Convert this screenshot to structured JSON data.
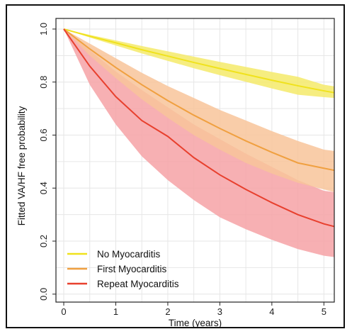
{
  "chart_data": {
    "type": "line",
    "xlabel": "Time (years)",
    "ylabel": "Fitted VA/HF free probability",
    "xlim": [
      -0.15,
      5.2
    ],
    "ylim": [
      -0.03,
      1.04
    ],
    "xticks": [
      "0",
      "1",
      "2",
      "3",
      "4",
      "5"
    ],
    "yticks": [
      "0.0",
      "0.2",
      "0.4",
      "0.6",
      "0.8",
      "1.0"
    ],
    "grid": true,
    "legend_position": "bottom-left",
    "series": [
      {
        "name": "No Myocarditis",
        "color": "#f0e21c",
        "band_color": "#f4ea6a",
        "x": [
          0,
          0.5,
          1,
          1.5,
          2,
          2.5,
          3,
          3.5,
          4,
          4.5,
          5,
          5.2
        ],
        "y": [
          1.0,
          0.973,
          0.948,
          0.922,
          0.898,
          0.874,
          0.851,
          0.829,
          0.807,
          0.786,
          0.767,
          0.76
        ],
        "lower": [
          1.0,
          0.968,
          0.938,
          0.908,
          0.88,
          0.852,
          0.826,
          0.801,
          0.776,
          0.752,
          0.743,
          0.74
        ],
        "upper": [
          1.0,
          0.978,
          0.957,
          0.936,
          0.916,
          0.896,
          0.876,
          0.857,
          0.838,
          0.82,
          0.79,
          0.784
        ]
      },
      {
        "name": "First Myocarditis",
        "color": "#f0a040",
        "band_color": "#f8c49a",
        "x": [
          0,
          0.5,
          1,
          1.5,
          2,
          2.5,
          3,
          3.5,
          4,
          4.5,
          5,
          5.2
        ],
        "y": [
          1.0,
          0.925,
          0.855,
          0.79,
          0.73,
          0.675,
          0.625,
          0.578,
          0.535,
          0.495,
          0.475,
          0.467
        ],
        "lower": [
          1.0,
          0.9,
          0.815,
          0.735,
          0.665,
          0.6,
          0.545,
          0.495,
          0.455,
          0.42,
          0.395,
          0.385
        ],
        "upper": [
          1.0,
          0.945,
          0.89,
          0.835,
          0.785,
          0.74,
          0.695,
          0.655,
          0.615,
          0.578,
          0.545,
          0.54
        ]
      },
      {
        "name": "Repeat Myocarditis",
        "color": "#e8402e",
        "band_color": "#f6a2a6",
        "x": [
          0,
          0.5,
          1,
          1.5,
          2,
          2.5,
          3,
          3.5,
          4,
          4.5,
          5,
          5.2
        ],
        "y": [
          1.0,
          0.86,
          0.745,
          0.655,
          0.595,
          0.515,
          0.45,
          0.395,
          0.345,
          0.3,
          0.265,
          0.255
        ],
        "lower": [
          1.0,
          0.79,
          0.64,
          0.52,
          0.43,
          0.355,
          0.29,
          0.245,
          0.205,
          0.17,
          0.145,
          0.14
        ],
        "upper": [
          1.0,
          0.92,
          0.84,
          0.77,
          0.705,
          0.64,
          0.585,
          0.53,
          0.48,
          0.43,
          0.39,
          0.385
        ]
      }
    ]
  }
}
